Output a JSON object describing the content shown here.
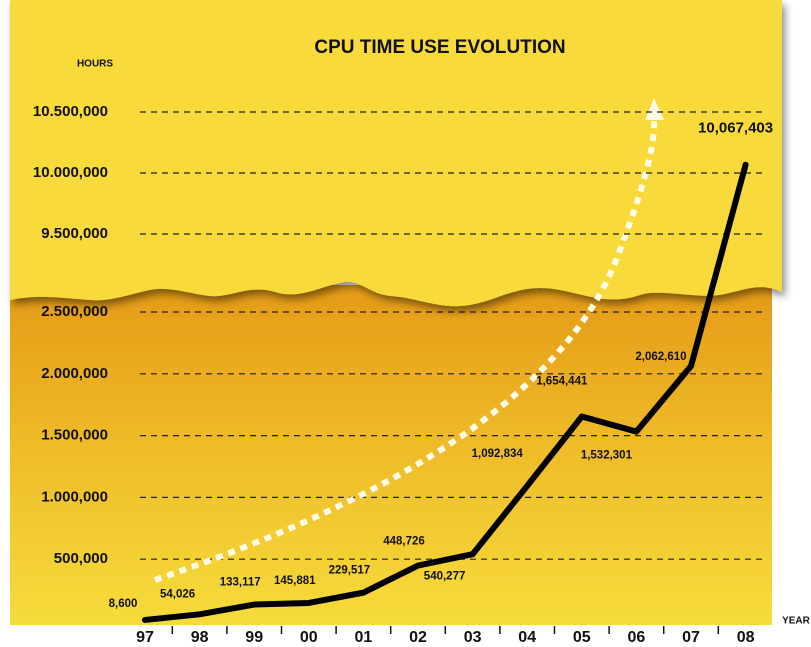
{
  "chart_data": {
    "type": "line",
    "title": "CPU TIME USE EVOLUTION",
    "y_label": "HOURS",
    "x_label": "YEAR",
    "categories": [
      "97",
      "98",
      "99",
      "00",
      "01",
      "02",
      "03",
      "04",
      "05",
      "06",
      "07",
      "08"
    ],
    "values": [
      8600,
      54026,
      133117,
      145881,
      229517,
      448726,
      540277,
      1092834,
      1654441,
      1532301,
      2062610,
      10067403
    ],
    "value_labels": [
      "8,600",
      "54,026",
      "133,117",
      "145,881",
      "229,517",
      "448,726",
      "540,277",
      "1,092,834",
      "1,654,441",
      "1,532,301",
      "2,062,610",
      "10,067,403"
    ],
    "color": "#000000",
    "axis_break": true,
    "ylim": [
      0,
      2500000
    ],
    "yticks": [
      {
        "value": 500000,
        "label": "500,000"
      },
      {
        "value": 1000000,
        "label": "1.000,000"
      },
      {
        "value": 1500000,
        "label": "1.500,000"
      },
      {
        "value": 2000000,
        "label": "2.000,000"
      },
      {
        "value": 2500000,
        "label": "2.500,000"
      }
    ],
    "y_upper_lim": [
      9500000,
      10500000
    ],
    "y_upper_ticks": [
      {
        "value": 9500000,
        "label": "9.500,000"
      },
      {
        "value": 10000000,
        "label": "10.000,000"
      },
      {
        "value": 10500000,
        "label": "10.500,000"
      }
    ],
    "grid": true
  }
}
